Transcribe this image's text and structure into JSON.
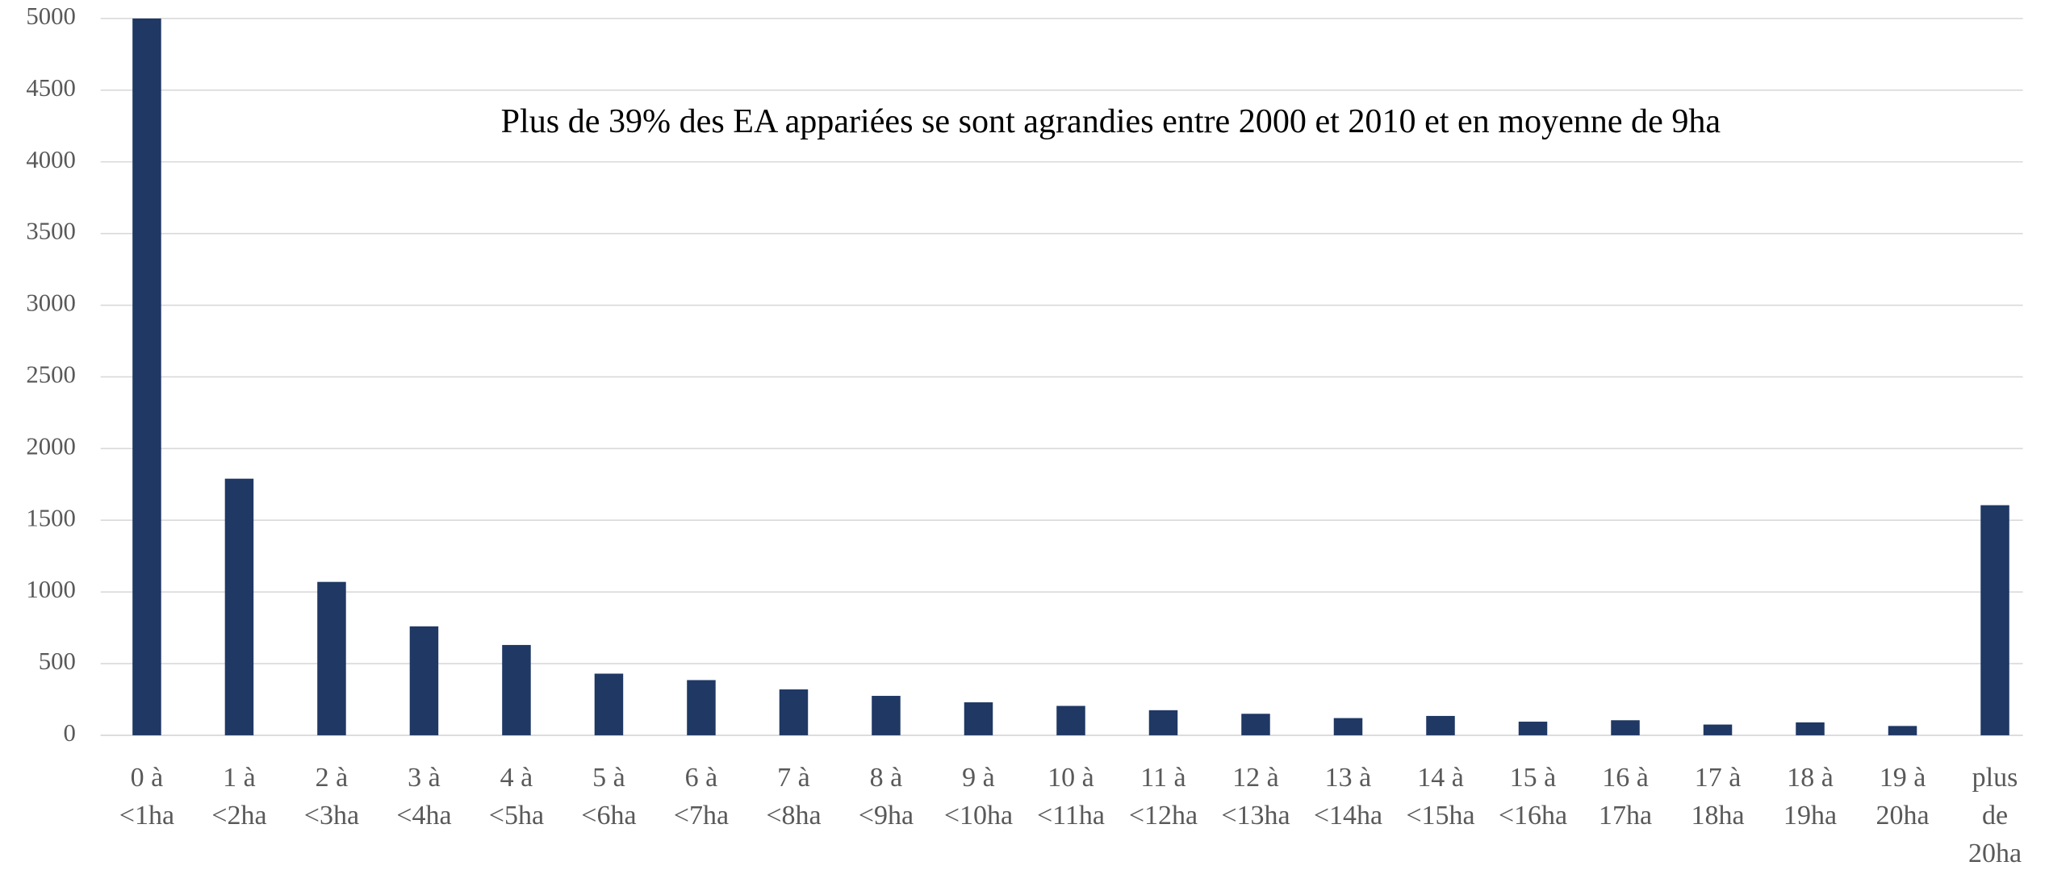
{
  "chart_data": {
    "type": "bar",
    "annotation": "Plus de 39% des EA appariées se sont agrandies entre 2000 et 2010 et en moyenne de 9ha",
    "categories": [
      "0 à\n<1ha",
      "1 à\n<2ha",
      "2 à\n<3ha",
      "3 à\n<4ha",
      "4 à\n<5ha",
      "5 à\n<6ha",
      "6 à\n<7ha",
      "7 à\n<8ha",
      "8 à\n<9ha",
      "9 à\n<10ha",
      "10 à\n<11ha",
      "11 à\n<12ha",
      "12 à\n<13ha",
      "13 à\n<14ha",
      "14 à\n<15ha",
      "15 à\n<16ha",
      "16 à\n17ha",
      "17 à\n18ha",
      "18  à\n19ha",
      "19 à\n20ha",
      "plus\nde\n20ha"
    ],
    "values": [
      5000,
      1790,
      1070,
      760,
      630,
      430,
      385,
      320,
      275,
      230,
      205,
      175,
      150,
      120,
      135,
      95,
      105,
      75,
      90,
      65,
      1605
    ],
    "color": "#1f3864",
    "ylim": [
      0,
      5000
    ],
    "yticks": [
      0,
      500,
      1000,
      1500,
      2000,
      2500,
      3000,
      3500,
      4000,
      4500,
      5000
    ],
    "grid": true
  }
}
